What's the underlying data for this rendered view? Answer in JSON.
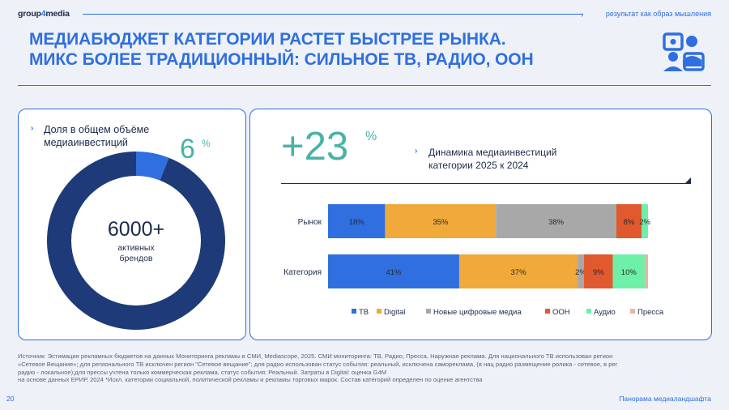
{
  "header": {
    "logo_text_a": "group",
    "logo_text_b": "4",
    "logo_text_c": "media",
    "slogan": "результат как образ мышления",
    "title_line1": "Медиабюджет категории растет быстрее рынка.",
    "title_line2": "Микс более традиционный: сильное ТВ, радио, OOH"
  },
  "left_panel": {
    "label": "Доля в общем объёме медиаинвестиций",
    "share_value": "6",
    "share_unit": "%",
    "brands_count": "6000+",
    "brands_label": "активных брендов"
  },
  "right_panel": {
    "growth_value": "+23",
    "growth_unit": "%",
    "growth_label": "Динамика медиаинвестиций категории 2025 к 2024"
  },
  "colors": {
    "accent_blue": "#2f6fe0",
    "teal": "#47b3a6",
    "navy": "#1e3a78",
    "tv": "#2f6fe0",
    "digital": "#f0a93a",
    "new_digital": "#a8a8a8",
    "ooh": "#e0592f",
    "audio": "#6ef0a8",
    "press": "#e8b4aa"
  },
  "donut_chart_data": {
    "type": "pie",
    "values": [
      6,
      94
    ],
    "colors": [
      "#2f6fe0",
      "#1e3a78"
    ]
  },
  "chart_data": {
    "type": "bar",
    "stacked": true,
    "orientation": "horizontal",
    "categories": [
      "Рынок",
      "Категория"
    ],
    "series": [
      {
        "name": "ТВ",
        "color": "#2f6fe0",
        "values": [
          18,
          41
        ],
        "labels": [
          "18%",
          "41%"
        ]
      },
      {
        "name": "Digital",
        "color": "#f0a93a",
        "values": [
          35,
          37
        ],
        "labels": [
          "35%",
          "37%"
        ]
      },
      {
        "name": "Новые цифровые медиа",
        "color": "#a8a8a8",
        "values": [
          38,
          2
        ],
        "labels": [
          "38%",
          "2%"
        ]
      },
      {
        "name": "OOH",
        "color": "#e0592f",
        "values": [
          8,
          9
        ],
        "labels": [
          "8%",
          "9%"
        ]
      },
      {
        "name": "Аудио",
        "color": "#6ef0a8",
        "values": [
          2,
          10
        ],
        "labels": [
          "2%",
          "10%"
        ]
      },
      {
        "name": "Пресса",
        "color": "#e8b4aa",
        "values": [
          0,
          1
        ],
        "labels": [
          "",
          ""
        ]
      }
    ],
    "xlim": [
      0,
      100
    ],
    "legend": "bottom"
  },
  "source": {
    "line1": "Источник: Эстимация рекламных бюджетов на данных Мониторинга рекламы в СМИ, Mediascope, 2025. СМИ мониторинга: ТВ, Радио, Пресса, Наружная реклама. Для национального ТВ использован регион",
    "line2": "«Сетевое Вещание»; для регионального ТВ исключен регион \"Сетевое вещание\"; для радио использован статус события: реальный, исключена самореклама, (в нац радио размещение ролика - сетевое, в рег",
    "line3": "радио - локальное);для прессы учтена только коммерческая реклама, статус события: Реальный. Затраты в Digital: оценка G4M",
    "line4": "на основе данных ЕРИР, 2024 *Искл. категории социальной, политической рекламы и рекламы торговых марок. Состав категорий определен по оценке агентства"
  },
  "footer": {
    "page_number": "20",
    "title": "Панорама медиаландшафта"
  }
}
